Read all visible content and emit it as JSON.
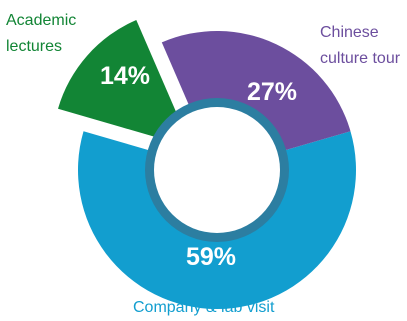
{
  "chart_data": {
    "type": "pie",
    "title": "",
    "categories": [
      "Company & lab visit",
      "Academic lectures",
      "Chinese culture tour"
    ],
    "values": [
      59,
      14,
      27
    ],
    "value_labels": [
      "59%",
      "14%",
      "27%"
    ],
    "colors": [
      "#129ECF",
      "#128535",
      "#6C4E9E"
    ],
    "legend": "none",
    "labels": {
      "company": "Company & lab visit",
      "academic": "Academic\nlectures",
      "chinese": "Chinese\nculture tour"
    }
  }
}
